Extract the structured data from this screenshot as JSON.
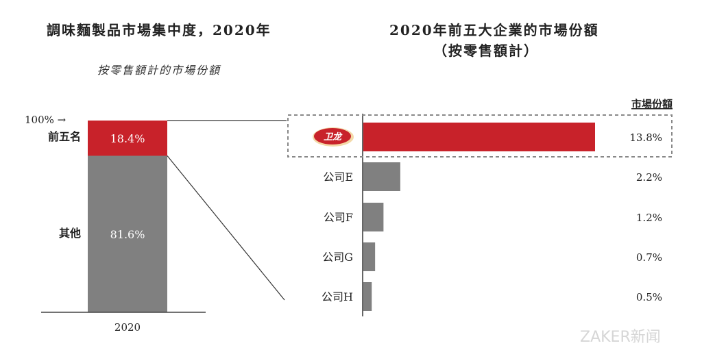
{
  "chart_data": [
    {
      "type": "bar",
      "stacked": true,
      "title": "調味麵製品市場集中度，2020年",
      "subtitle": "按零售額計的市場份額",
      "categories": [
        "2020"
      ],
      "top_marker": "100% →",
      "series": [
        {
          "name": "前五名",
          "values": [
            18.4
          ],
          "label": "18.4%",
          "color": "#c8222a"
        },
        {
          "name": "其他",
          "values": [
            81.6
          ],
          "label": "81.6%",
          "color": "#808080"
        }
      ],
      "ylim": [
        0,
        100
      ]
    },
    {
      "type": "bar",
      "orientation": "horizontal",
      "title": "2020年前五大企業的市場份額",
      "subtitle": "（按零售額計）",
      "value_header": "市場份額",
      "categories": [
        "卫龙",
        "公司E",
        "公司F",
        "公司G",
        "公司H"
      ],
      "values": [
        13.8,
        2.2,
        1.2,
        0.7,
        0.5
      ],
      "value_labels": [
        "13.8%",
        "2.2%",
        "1.2%",
        "0.7%",
        "0.5%"
      ],
      "colors": [
        "#c8222a",
        "#808080",
        "#808080",
        "#808080",
        "#808080"
      ],
      "highlight_first": true
    }
  ],
  "watermark": "ZAKER新闻"
}
